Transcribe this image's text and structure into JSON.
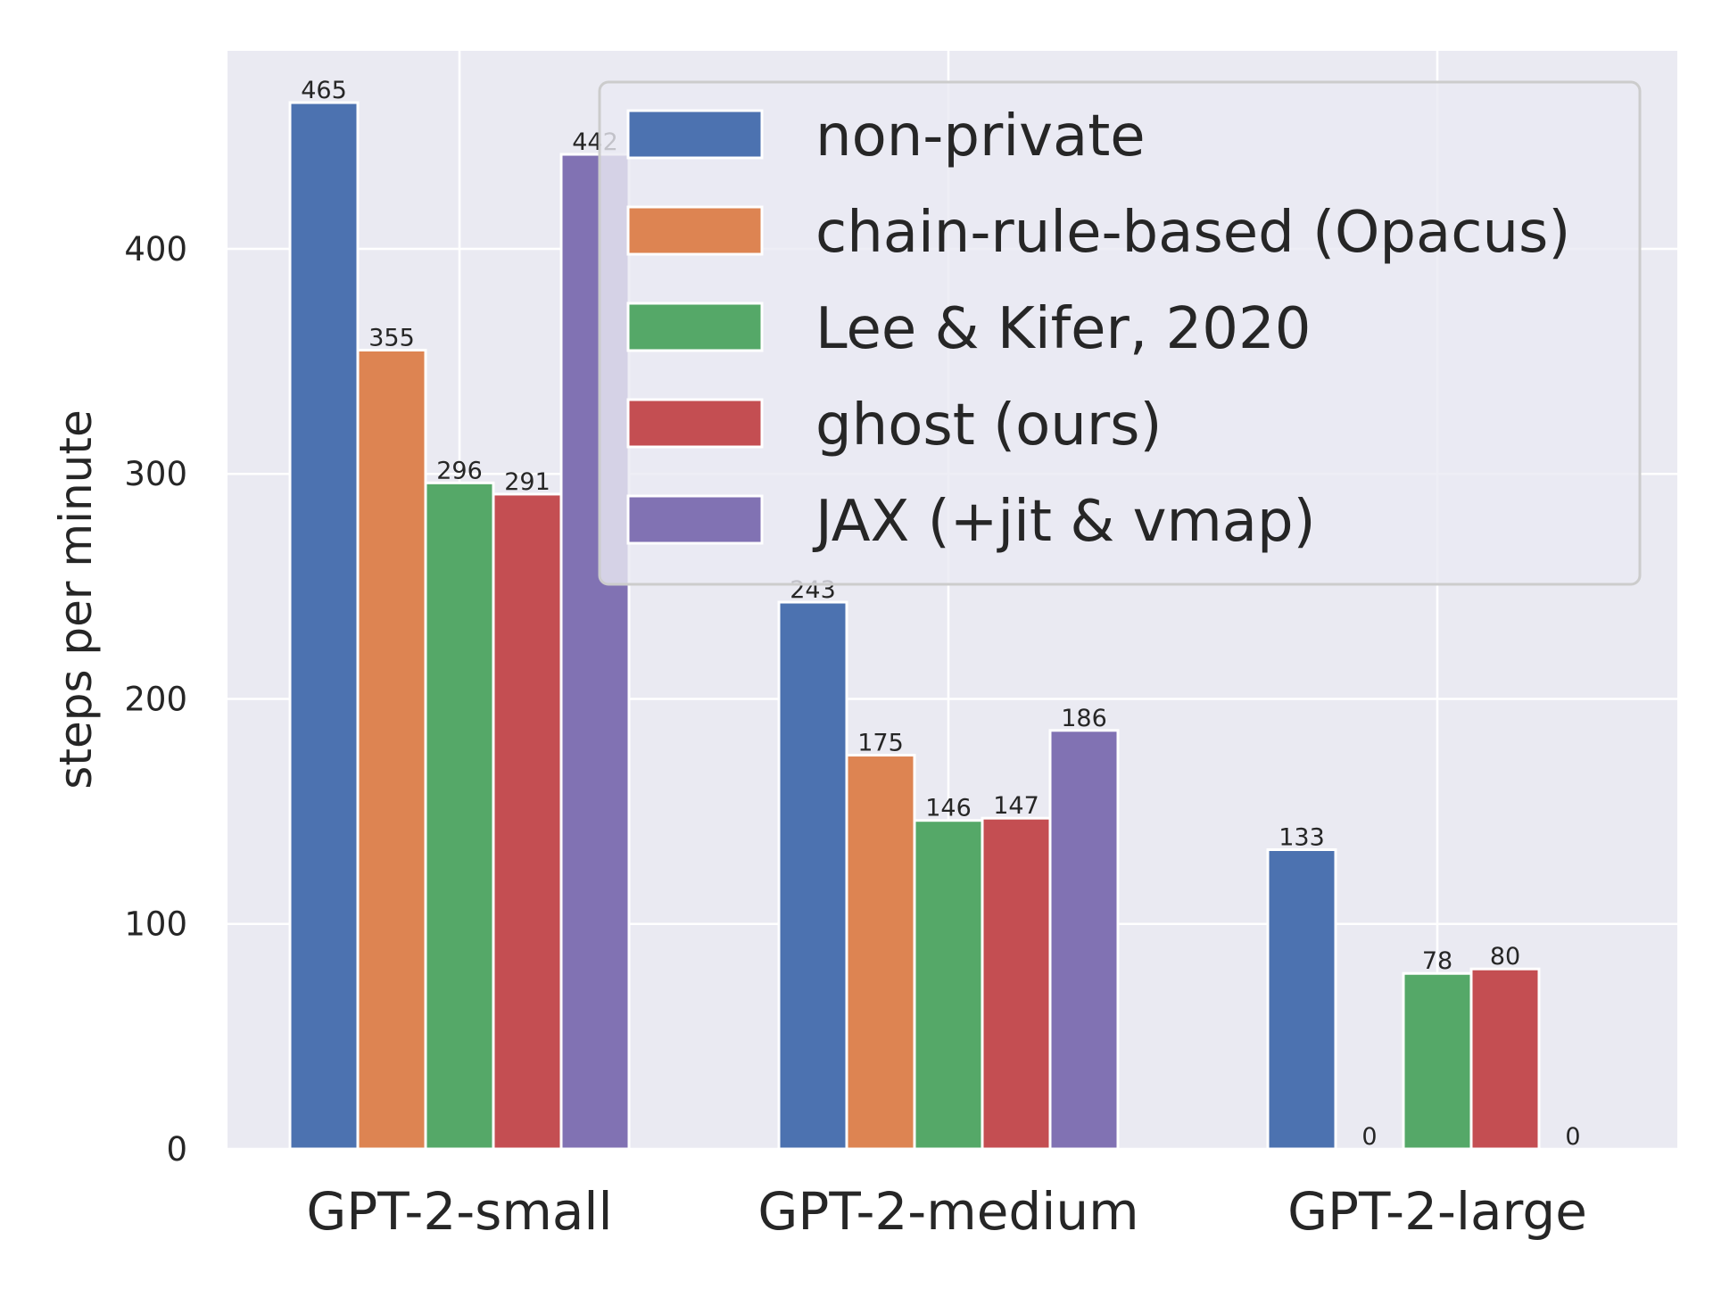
{
  "chart_data": {
    "type": "bar",
    "title": "",
    "xlabel": "",
    "ylabel": "steps per minute",
    "categories": [
      "GPT-2-small",
      "GPT-2-medium",
      "GPT-2-large"
    ],
    "ylim": [
      0,
      488
    ],
    "yticks": [
      0,
      100,
      200,
      300,
      400
    ],
    "grid": true,
    "legend_position": "top-right",
    "series": [
      {
        "name": "non-private",
        "color": "#4C72B0",
        "values": [
          465,
          243,
          133
        ]
      },
      {
        "name": "chain-rule-based (Opacus)",
        "color": "#DD8452",
        "values": [
          355,
          175,
          0
        ]
      },
      {
        "name": "Lee & Kifer, 2020",
        "color": "#55A868",
        "values": [
          296,
          146,
          78
        ]
      },
      {
        "name": "ghost (ours)",
        "color": "#C44E52",
        "values": [
          291,
          147,
          80
        ]
      },
      {
        "name": "JAX (+jit & vmap)",
        "color": "#8172B3",
        "values": [
          442,
          186,
          0
        ]
      }
    ],
    "background_color": "#EAEAF2",
    "grid_color": "#FFFFFF"
  }
}
